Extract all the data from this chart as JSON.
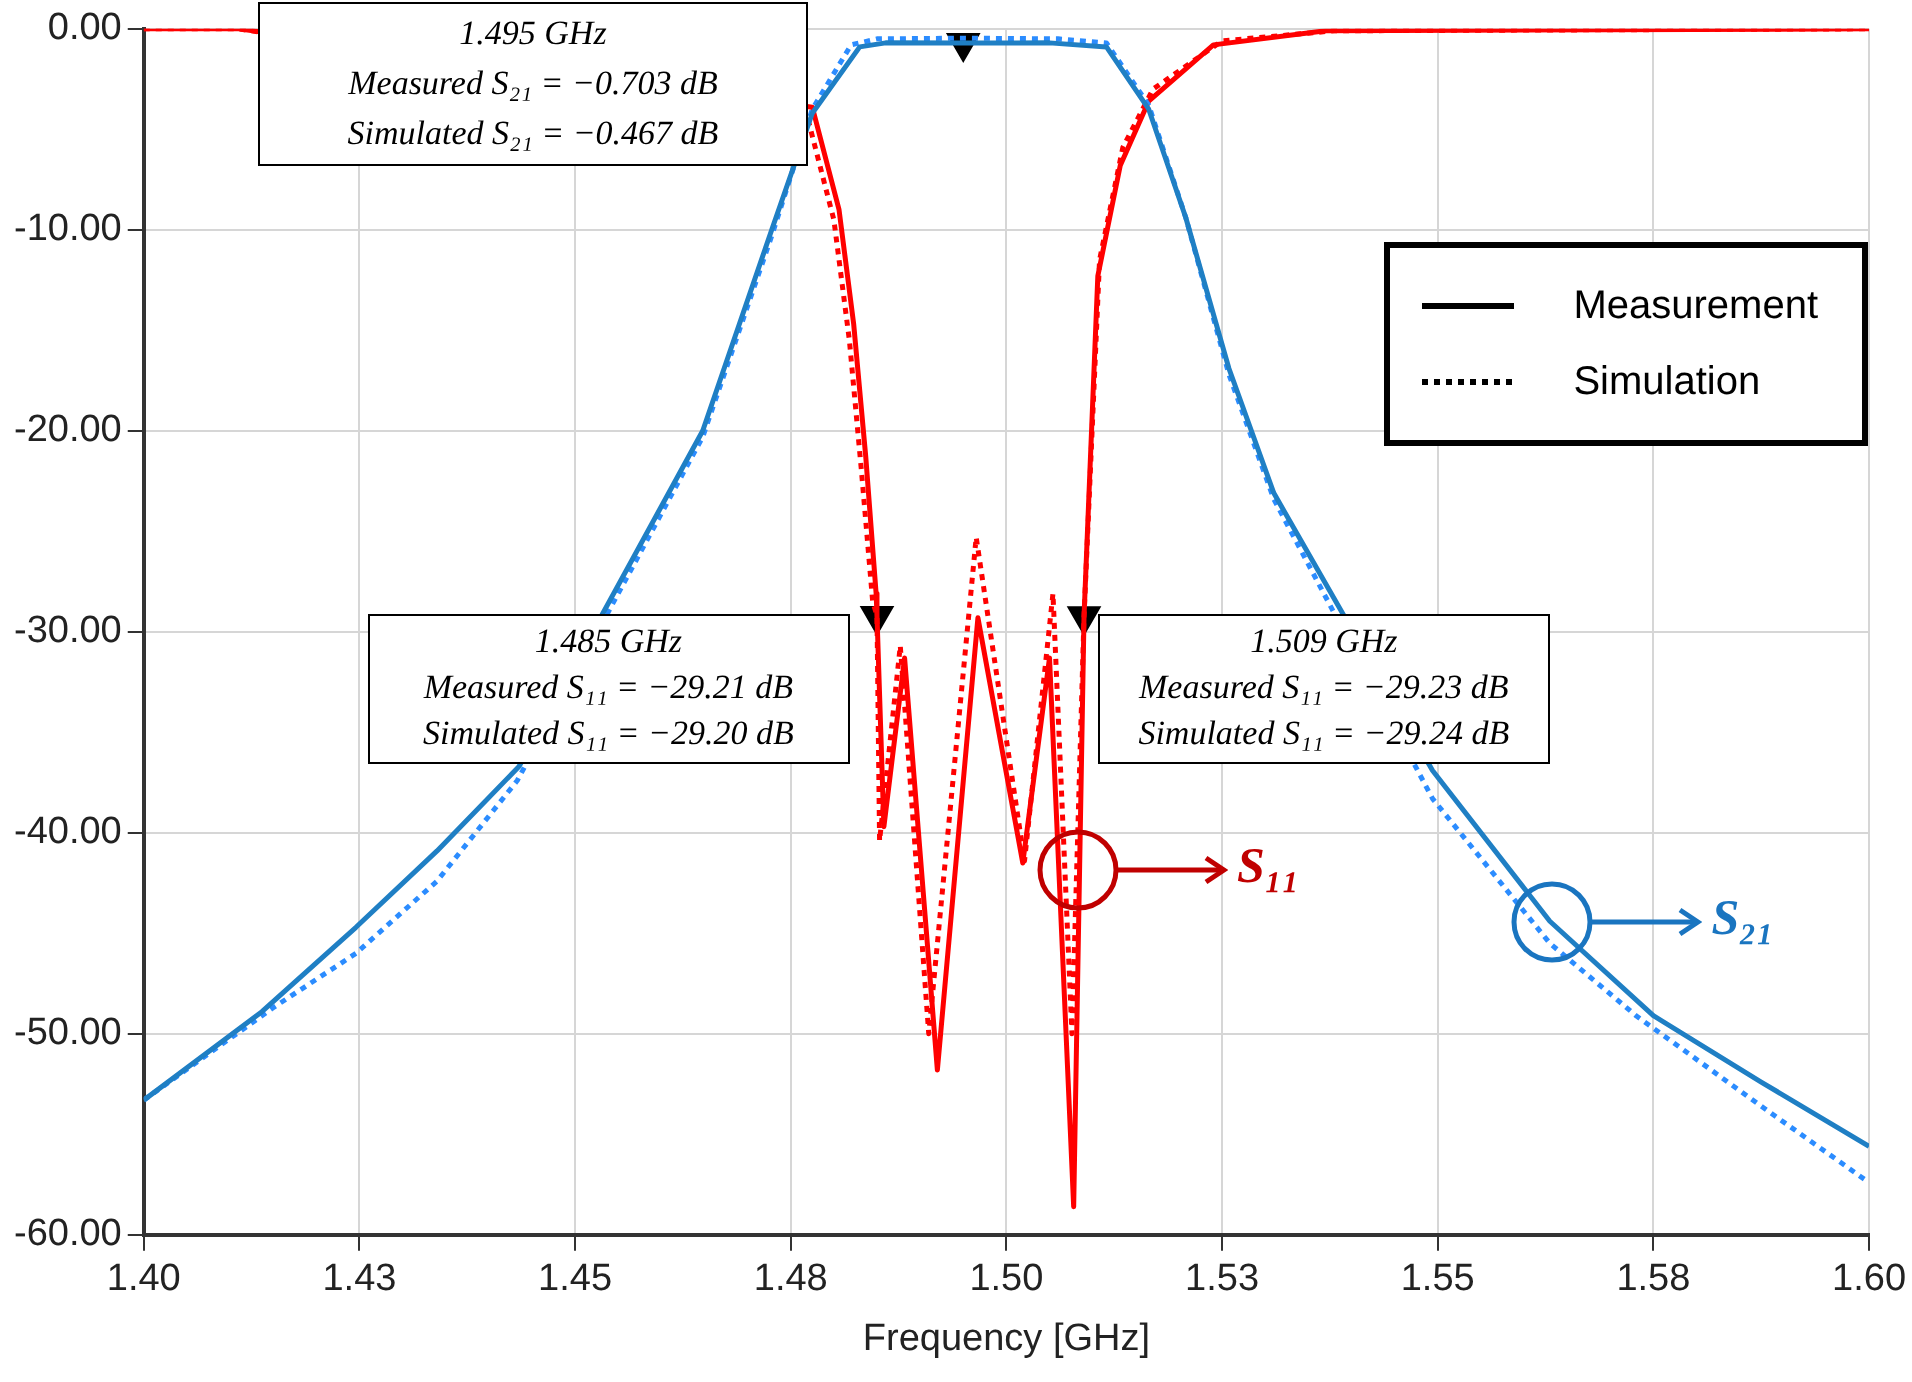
{
  "chart_data": {
    "type": "line",
    "xlabel": "Frequency [GHz]",
    "xlim": [
      1.4,
      1.6
    ],
    "xticks": [
      {
        "value": 1.4,
        "label": "1.40"
      },
      {
        "value": 1.425,
        "label": "1.43"
      },
      {
        "value": 1.45,
        "label": "1.45"
      },
      {
        "value": 1.475,
        "label": "1.48"
      },
      {
        "value": 1.5,
        "label": "1.50"
      },
      {
        "value": 1.525,
        "label": "1.53"
      },
      {
        "value": 1.55,
        "label": "1.55"
      },
      {
        "value": 1.575,
        "label": "1.58"
      },
      {
        "value": 1.6,
        "label": "1.60"
      }
    ],
    "ylim": [
      -60,
      0
    ],
    "yticks": [
      {
        "value": -60,
        "label": "-60.00"
      },
      {
        "value": -50,
        "label": "-50.00"
      },
      {
        "value": -40,
        "label": "-40.00"
      },
      {
        "value": -30,
        "label": "-30.00"
      },
      {
        "value": -20,
        "label": "-20.00"
      },
      {
        "value": -10,
        "label": "-10.00"
      },
      {
        "value": 0,
        "label": "0.00"
      }
    ],
    "grid": true,
    "legend": "right",
    "series": [
      {
        "color": "#1f7fc4",
        "line_style": "solid",
        "x": [
          1.4,
          1.4137,
          1.4246,
          1.434,
          1.4435,
          1.4648,
          1.4728,
          1.4775,
          1.483,
          1.486,
          1.495,
          1.505,
          1.5116,
          1.5165,
          1.5208,
          1.5258,
          1.531,
          1.5494,
          1.563,
          1.575,
          1.5875,
          1.6
        ],
        "values": [
          -53.3,
          -48.9,
          -44.7,
          -40.9,
          -36.7,
          -20.0,
          -10.0,
          -4.2,
          -0.9,
          -0.7,
          -0.703,
          -0.7,
          -0.9,
          -4.0,
          -9.4,
          -16.9,
          -23.1,
          -36.9,
          -44.4,
          -49.1,
          -52.4,
          -55.6
        ]
      },
      {
        "color": "#2b8cff",
        "line_style": "dotted",
        "x": [
          1.4,
          1.415,
          1.4246,
          1.434,
          1.4433,
          1.4648,
          1.4728,
          1.4775,
          1.482,
          1.485,
          1.495,
          1.506,
          1.5116,
          1.5165,
          1.5208,
          1.5258,
          1.531,
          1.5494,
          1.563,
          1.573,
          1.5875,
          1.6
        ],
        "values": [
          -53.3,
          -48.7,
          -46.0,
          -42.4,
          -37.4,
          -20.3,
          -10.3,
          -4.0,
          -0.8,
          -0.5,
          -0.467,
          -0.5,
          -0.7,
          -3.8,
          -9.4,
          -17.2,
          -23.4,
          -38.3,
          -45.5,
          -49.1,
          -53.6,
          -57.4
        ]
      },
      {
        "color": "#ff0000",
        "line_style": "solid",
        "x": [
          1.4,
          1.411,
          1.4775,
          1.4806,
          1.4823,
          1.4837,
          1.4849,
          1.485,
          1.4858,
          1.4882,
          1.492,
          1.4967,
          1.5019,
          1.505,
          1.5078,
          1.509,
          1.5106,
          1.5132,
          1.5165,
          1.524,
          1.537,
          1.6
        ],
        "values": [
          0,
          0,
          -3.9,
          -9.0,
          -14.7,
          -21.3,
          -28.1,
          -29.21,
          -39.7,
          -31.3,
          -51.8,
          -29.3,
          -41.5,
          -31.3,
          -58.6,
          -29.23,
          -12.3,
          -6.8,
          -3.6,
          -0.8,
          -0.1,
          0
        ]
      },
      {
        "color": "#ff0000",
        "line_style": "dotted",
        "x": [
          1.4,
          1.411,
          1.477,
          1.48,
          1.4818,
          1.4832,
          1.4845,
          1.485,
          1.4853,
          1.4877,
          1.491,
          1.4965,
          1.5021,
          1.5054,
          1.5076,
          1.509,
          1.5108,
          1.5135,
          1.517,
          1.525,
          1.538,
          1.6
        ],
        "values": [
          0,
          0,
          -4.5,
          -9.5,
          -15.5,
          -22.0,
          -28.5,
          -29.2,
          -40.4,
          -30.7,
          -50.0,
          -25.3,
          -41.4,
          -28.1,
          -50.0,
          -29.24,
          -11.5,
          -5.9,
          -3.0,
          -0.6,
          -0.1,
          0
        ]
      },
      {
        "type": "scatter",
        "color": "#000000",
        "marker": "triangle",
        "x": [
          1.495,
          1.485,
          1.509
        ],
        "values": [
          -0.703,
          -29.21,
          -29.23
        ]
      },
      {
        "name": "Measurement",
        "color": "#000000",
        "line_style": "solid"
      },
      {
        "name": "Simulation",
        "color": "#000000",
        "line_style": "dotted"
      }
    ],
    "annotations": [
      "1.495 GHz\nMeasured S₂₁ = −0.703 dB\nSimulated S₂₁ = −0.467 dB",
      "1.485 GHz\nMeasured S₁₁ = −29.21 dB\nSimulated S₁₁ = −29.20 dB",
      "1.509 GHz\nMeasured S₁₁ = −29.23 dB\nSimulated S₁₁ = −29.24 dB",
      "S₁₁",
      "S₂₁"
    ]
  }
}
